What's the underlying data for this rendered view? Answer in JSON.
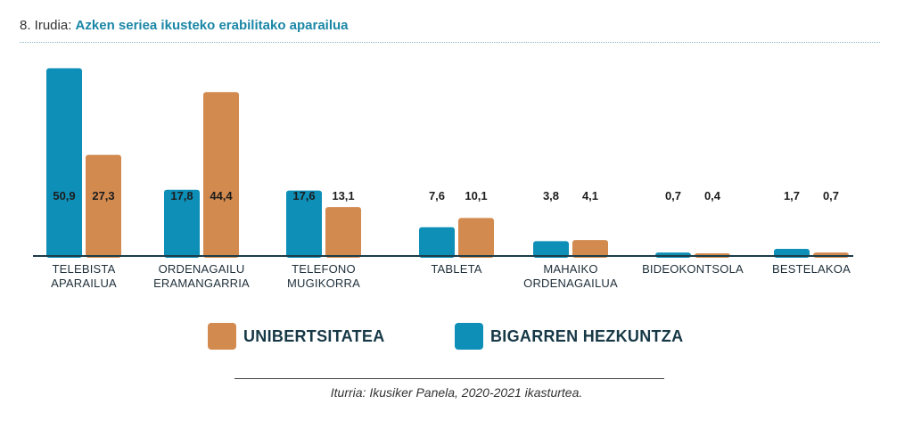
{
  "header": {
    "figure_number": "8. Irudia:",
    "title": "Azken seriea ikusteko erabilitako  aparailua"
  },
  "colors": {
    "bigarren": "#0e8fb8",
    "unibertsitatea": "#d38a4f",
    "axis": "#1c3d4a"
  },
  "chart_data": {
    "type": "bar",
    "categories": [
      [
        "TELEBISTA",
        "APARAILUA"
      ],
      [
        "ORDENAGAILU",
        "ERAMANGARRIA"
      ],
      [
        "TELEFONO",
        "MUGIKORRA"
      ],
      [
        "TABLETA"
      ],
      [
        "MAHAIKO",
        "ORDENAGAILUA"
      ],
      [
        "BIDEOKONTSOLA"
      ],
      [
        "BESTELAKOA"
      ]
    ],
    "series": [
      {
        "name": "BIGARREN HEZKUNTZA",
        "values": [
          50.9,
          17.8,
          17.6,
          7.6,
          3.8,
          0.7,
          1.7
        ],
        "labels": [
          "50,9",
          "17,8",
          "17,6",
          "7,6",
          "3,8",
          "0,7",
          "1,7"
        ]
      },
      {
        "name": "UNIBERTSITATEA",
        "values": [
          27.3,
          44.4,
          13.1,
          10.1,
          4.1,
          0.4,
          0.7
        ],
        "labels": [
          "27,3",
          "44,4",
          "13,1",
          "10,1",
          "4,1",
          "0,4",
          "0,7"
        ]
      }
    ],
    "ylim": [
      0,
      52
    ],
    "legend_position": "bottom",
    "grid": false
  },
  "legend": {
    "unibertsitatea": "UNIBERTSITATEA",
    "bigarren": "BIGARREN HEZKUNTZA"
  },
  "source": "Iturria: Ikusiker Panela, 2020-2021 ikasturtea."
}
